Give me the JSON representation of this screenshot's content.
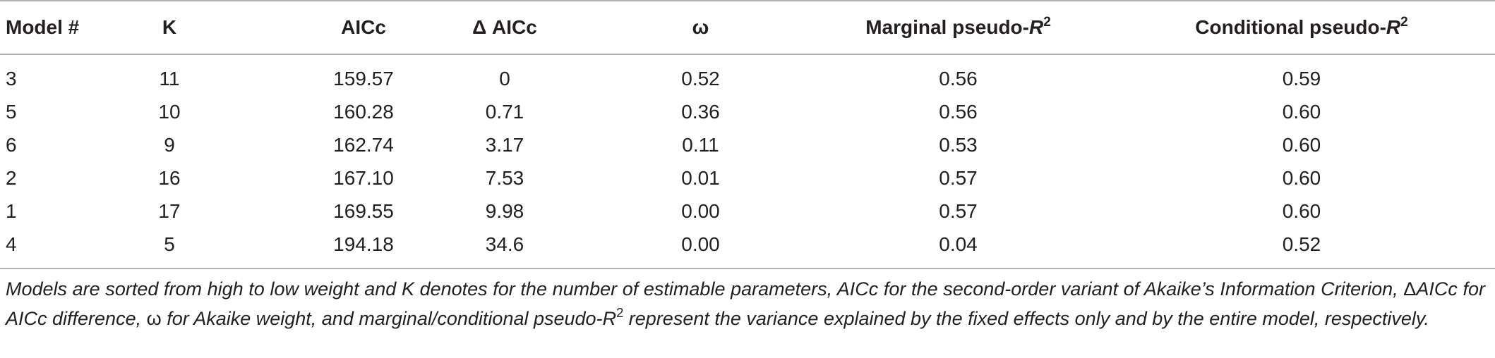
{
  "table": {
    "headers": {
      "model": "Model #",
      "k": "K",
      "aicc": "AICc",
      "delta_aicc": "Δ AICc",
      "omega": "ω",
      "marginal_prefix": "Marginal pseudo-",
      "conditional_prefix": "Conditional pseudo-",
      "r": "R",
      "two": "2"
    },
    "rows": [
      {
        "model": "3",
        "k": "11",
        "aicc": "159.57",
        "delta": "0",
        "omega": "0.52",
        "marginal": "0.56",
        "conditional": "0.59"
      },
      {
        "model": "5",
        "k": "10",
        "aicc": "160.28",
        "delta": "0.71",
        "omega": "0.36",
        "marginal": "0.56",
        "conditional": "0.60"
      },
      {
        "model": "6",
        "k": "9",
        "aicc": "162.74",
        "delta": "3.17",
        "omega": "0.11",
        "marginal": "0.53",
        "conditional": "0.60"
      },
      {
        "model": "2",
        "k": "16",
        "aicc": "167.10",
        "delta": "7.53",
        "omega": "0.01",
        "marginal": "0.57",
        "conditional": "0.60"
      },
      {
        "model": "1",
        "k": "17",
        "aicc": "169.55",
        "delta": "9.98",
        "omega": "0.00",
        "marginal": "0.57",
        "conditional": "0.60"
      },
      {
        "model": "4",
        "k": "5",
        "aicc": "194.18",
        "delta": "34.6",
        "omega": "0.00",
        "marginal": "0.04",
        "conditional": "0.52"
      }
    ]
  },
  "caption": {
    "part1": "Models are sorted from high to low weight and K denotes for the number of estimable parameters, AICc for the second-order variant of Akaike’s Information Criterion, ",
    "delta": "Δ",
    "part2": "AICc for AICc difference, ",
    "omega": "ω",
    "part3": " for Akaike weight, and marginal/conditional pseudo-",
    "r": "R",
    "two": "2",
    "part4": " represent the variance explained by the fixed effects only and by the entire model, respectively."
  }
}
